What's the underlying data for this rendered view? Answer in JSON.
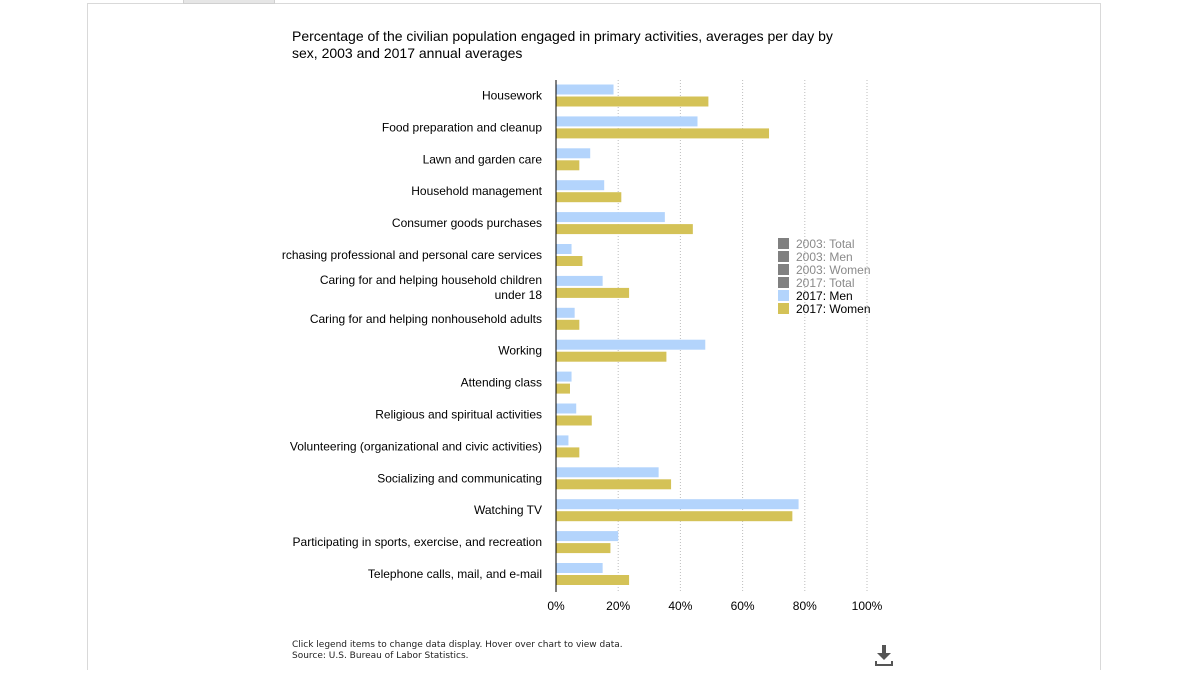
{
  "page": {
    "footer_note": "Click legend items to change data display. Hover over chart to view data.",
    "footer_source": "Source: U.S. Bureau of Labor Statistics."
  },
  "chart_data": {
    "type": "bar",
    "orientation": "horizontal",
    "title": "Percentage of the civilian population engaged in primary activities, averages per day by sex, 2003 and 2017 annual averages",
    "categories": [
      "Housework",
      "Food preparation and cleanup",
      "Lawn and garden care",
      "Household management",
      "Consumer goods purchases",
      "rchasing professional and personal care services",
      "Caring for and helping household children under 18",
      "Caring for and helping nonhousehold adults",
      "Working",
      "Attending class",
      "Religious and spiritual activities",
      "Volunteering (organizational and civic activities)",
      "Socializing and communicating",
      "Watching TV",
      "Participating in sports, exercise, and recreation",
      "Telephone calls, mail, and e-mail"
    ],
    "series": [
      {
        "name": "2017: Men",
        "color": "#b3d4fc",
        "values": [
          18.5,
          45.5,
          11.0,
          15.5,
          35.0,
          5.0,
          15.0,
          6.0,
          48.0,
          5.0,
          6.5,
          4.0,
          33.0,
          78.0,
          20.0,
          15.0
        ]
      },
      {
        "name": "2017: Women",
        "color": "#d4c257",
        "values": [
          49.0,
          68.5,
          7.5,
          21.0,
          44.0,
          8.5,
          23.5,
          7.5,
          35.5,
          4.5,
          11.5,
          7.5,
          37.0,
          76.0,
          17.5,
          23.5
        ]
      }
    ],
    "legend": {
      "placement": "right",
      "items": [
        {
          "label": "2003: Total",
          "color": "#808080",
          "active": false
        },
        {
          "label": "2003: Men",
          "color": "#808080",
          "active": false
        },
        {
          "label": "2003: Women",
          "color": "#808080",
          "active": false
        },
        {
          "label": "2017: Total",
          "color": "#808080",
          "active": false
        },
        {
          "label": "2017: Men",
          "color": "#b3d4fc",
          "active": true
        },
        {
          "label": "2017: Women",
          "color": "#d4c257",
          "active": true
        }
      ]
    },
    "xlim": [
      0,
      100
    ],
    "xticks": [
      0,
      20,
      40,
      60,
      80,
      100
    ],
    "xtick_labels": [
      "0%",
      "20%",
      "40%",
      "60%",
      "80%",
      "100%"
    ],
    "grid": true
  }
}
